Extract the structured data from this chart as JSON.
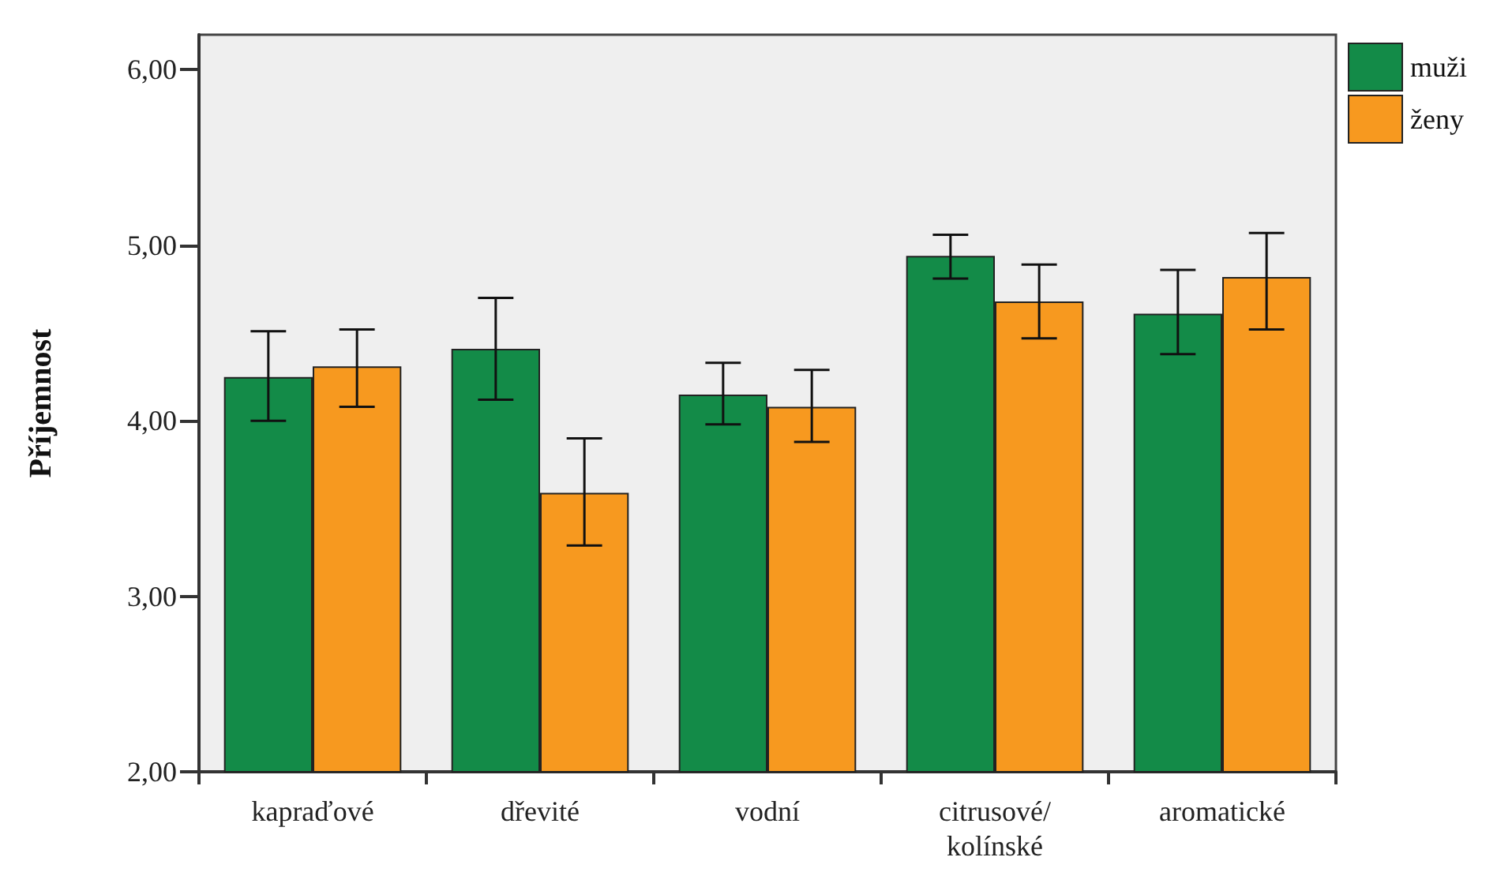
{
  "chart_data": {
    "type": "bar",
    "ylabel": "Příjemnost",
    "categories": [
      "kapraďové",
      "dřevité",
      "vodní",
      "citrusové/\nkolínské",
      "aromatické"
    ],
    "series": [
      {
        "name": "muži",
        "color": "#138b48",
        "values": [
          4.25,
          4.41,
          4.15,
          4.94,
          4.61
        ],
        "errors": [
          [
            4.0,
            4.51
          ],
          [
            4.12,
            4.7
          ],
          [
            3.98,
            4.33
          ],
          [
            4.81,
            5.06
          ],
          [
            4.38,
            4.86
          ]
        ]
      },
      {
        "name": "ženy",
        "color": "#f7991f",
        "values": [
          4.31,
          3.59,
          4.08,
          4.68,
          4.82
        ],
        "errors": [
          [
            4.08,
            4.52
          ],
          [
            3.29,
            3.9
          ],
          [
            3.88,
            4.29
          ],
          [
            4.47,
            4.89
          ],
          [
            4.52,
            5.07
          ]
        ]
      }
    ],
    "ylim": [
      2,
      6.2
    ],
    "yticks": [
      {
        "value": 2,
        "label": "2,00"
      },
      {
        "value": 3,
        "label": "3,00"
      },
      {
        "value": 4,
        "label": "4,00"
      },
      {
        "value": 5,
        "label": "5,00"
      },
      {
        "value": 6,
        "label": "6,00"
      }
    ],
    "grid": false,
    "legend": "top right"
  }
}
